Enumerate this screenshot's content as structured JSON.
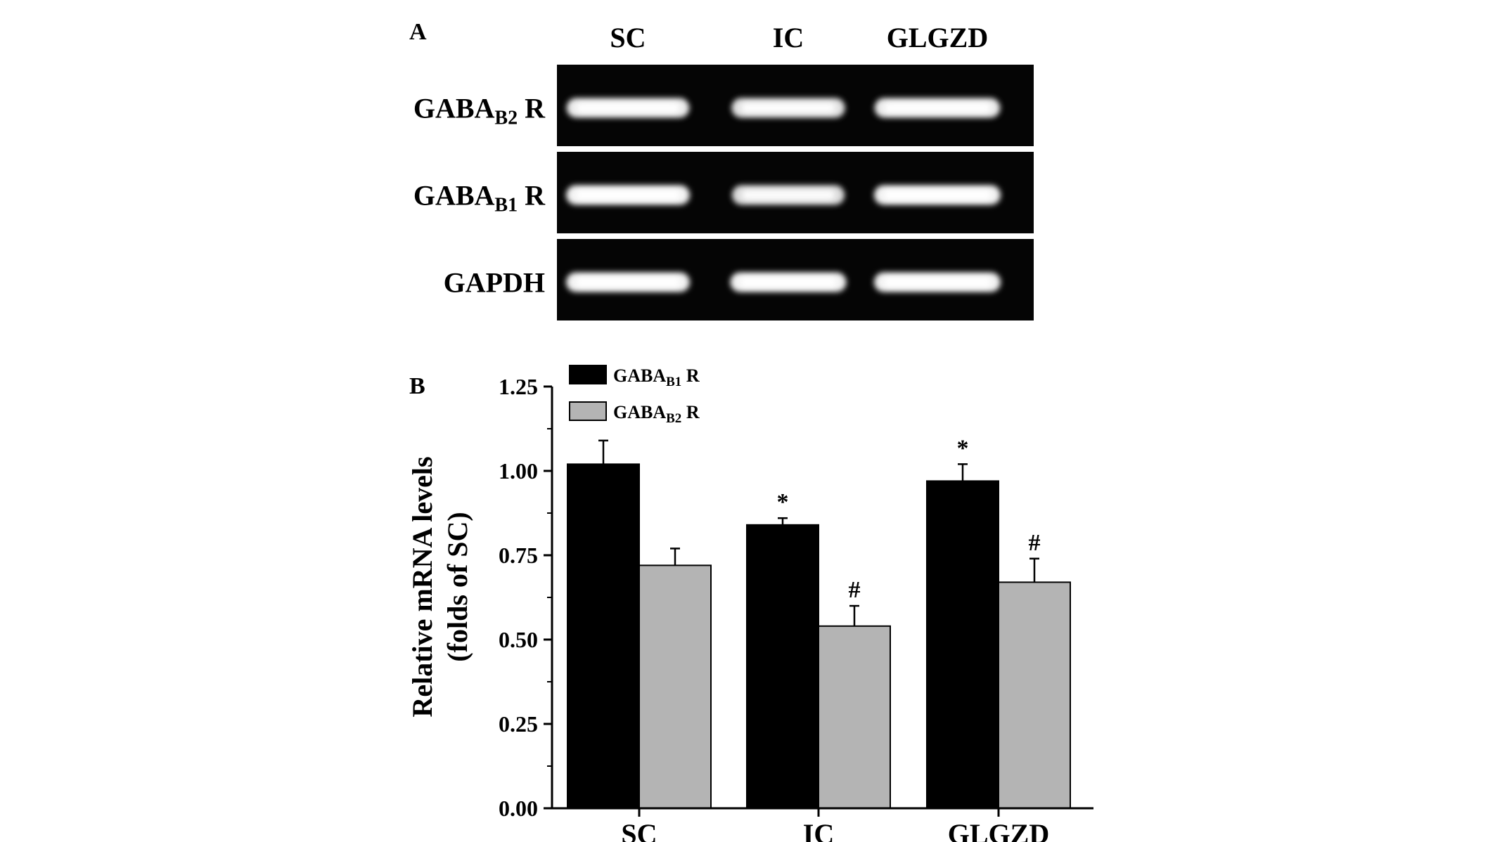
{
  "panel_a": {
    "label": "A",
    "lane_labels": [
      "SC",
      "IC",
      "GLGZD"
    ],
    "rows": [
      {
        "gene": "GABA",
        "sub": "B2",
        "suffix": "R",
        "band_intensity": [
          0.95,
          0.85,
          0.95
        ]
      },
      {
        "gene": "GABA",
        "sub": "B1",
        "suffix": "R",
        "band_intensity": [
          1.0,
          0.8,
          1.0
        ]
      },
      {
        "gene": "GAPDH",
        "sub": "",
        "suffix": "",
        "band_intensity": [
          1.0,
          1.0,
          1.0
        ]
      }
    ],
    "colors": {
      "gel": "#050505",
      "band": "#f2f2f2"
    }
  },
  "chart_data": {
    "type": "bar",
    "panel_label": "B",
    "categories": [
      "SC",
      "IC",
      "GLGZD"
    ],
    "series": [
      {
        "legend_main": "GABA",
        "legend_sub": "B1",
        "legend_suffix": "R",
        "color": "#000000",
        "values": [
          1.02,
          0.84,
          0.97
        ],
        "errors": [
          0.07,
          0.02,
          0.05
        ],
        "annotations": [
          "",
          "*",
          "*"
        ]
      },
      {
        "legend_main": "GABA",
        "legend_sub": "B2",
        "legend_suffix": "R",
        "color": "#b4b4b4",
        "values": [
          0.72,
          0.54,
          0.67
        ],
        "errors": [
          0.05,
          0.06,
          0.07
        ],
        "annotations": [
          "",
          "#",
          "#"
        ]
      }
    ],
    "ylabel_line1": "Relative mRNA levels",
    "ylabel_line2": "(folds of SC)",
    "ylim": [
      0,
      1.25
    ],
    "yticks": [
      "0.00",
      "0.25",
      "0.50",
      "0.75",
      "1.00",
      "1.25"
    ],
    "ytick_values": [
      0,
      0.25,
      0.5,
      0.75,
      1.0,
      1.25
    ],
    "legend_position": "top-left"
  }
}
